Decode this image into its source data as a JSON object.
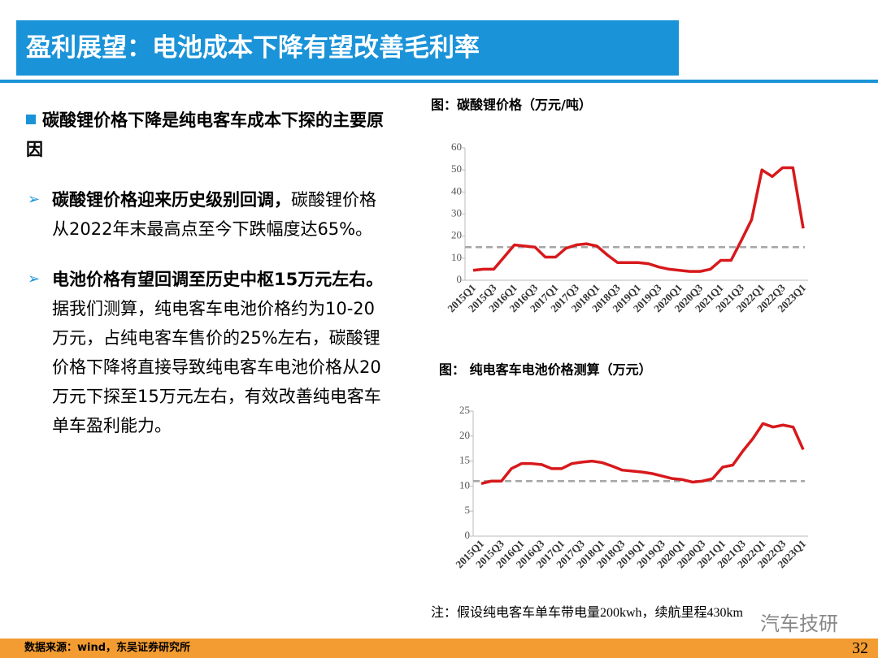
{
  "header": {
    "title": "盈利展望：电池成本下降有望改善毛利率"
  },
  "body": {
    "heading": "碳酸锂价格下降是纯电客车成本下探的主要原因",
    "points": [
      {
        "bold": "碳酸锂价格迎来历史级别回调，",
        "text": "碳酸锂价格从2022年末最高点至今下跌幅度达65%。"
      },
      {
        "bold": "电池价格有望回调至历史中枢15万元左右。",
        "text": "据我们测算，纯电客车电池价格约为10-20万元，占纯电客车售价的25%左右，碳酸锂价格下降将直接导致纯电客车电池价格从20万元下探至15万元左右，有效改善纯电客车单车盈利能力。"
      }
    ]
  },
  "chart_data": [
    {
      "type": "line",
      "title": "图：碳酸锂价格（万元/吨）",
      "categories": [
        "2015Q1",
        null,
        "2015Q3",
        null,
        "2016Q1",
        null,
        "2016Q3",
        null,
        "2017Q1",
        null,
        "2017Q3",
        null,
        "2018Q1",
        null,
        "2018Q3",
        null,
        "2019Q1",
        null,
        "2019Q3",
        null,
        "2020Q1",
        null,
        "2020Q3",
        null,
        "2021Q1",
        null,
        "2021Q3",
        null,
        "2022Q1",
        null,
        "2022Q3",
        null,
        "2023Q1"
      ],
      "values": [
        4.5,
        5,
        5,
        10.5,
        16,
        15.5,
        15,
        10.5,
        10.5,
        14.5,
        16,
        16.5,
        15.5,
        11.5,
        8,
        8,
        8,
        7.5,
        6,
        5,
        4.5,
        4,
        4,
        5,
        9,
        9,
        18,
        27.5,
        50,
        47,
        51,
        51,
        23.5
      ],
      "color": "#d7191c",
      "reference_line": 15,
      "reference_color": "#a6a6a6",
      "ylim": [
        0,
        60
      ],
      "yticks": [
        0,
        10,
        20,
        30,
        40,
        50,
        60
      ]
    },
    {
      "type": "line",
      "title": "图： 纯电客车电池价格测算（万元）",
      "categories": [
        "2015Q1",
        null,
        "2015Q3",
        null,
        "2016Q1",
        null,
        "2016Q3",
        null,
        "2017Q1",
        null,
        "2017Q3",
        null,
        "2018Q1",
        null,
        "2018Q3",
        null,
        "2019Q1",
        null,
        "2019Q3",
        null,
        "2020Q1",
        null,
        "2020Q3",
        null,
        "2021Q1",
        null,
        "2021Q3",
        null,
        "2022Q1",
        null,
        "2022Q3",
        null,
        "2023Q1"
      ],
      "values": [
        10.5,
        11,
        11,
        13.5,
        14.5,
        14.5,
        14.3,
        13.5,
        13.5,
        14.5,
        14.8,
        15,
        14.7,
        14,
        13.2,
        13,
        12.8,
        12.5,
        12,
        11.5,
        11.3,
        10.8,
        11,
        11.5,
        13.8,
        14.2,
        17,
        19.5,
        22.5,
        21.8,
        22.2,
        21.8,
        17.3
      ],
      "color": "#d7191c",
      "reference_line": 11,
      "reference_color": "#a6a6a6",
      "ylim": [
        0,
        25
      ],
      "yticks": [
        0,
        5,
        10,
        15,
        20,
        25
      ]
    }
  ],
  "note": "注：假设纯电客车单车带电量200kwh，续航里程430km",
  "watermark": "汽车技研",
  "footer": {
    "source": "数据来源：wind，东吴证券研究所",
    "page": "32"
  }
}
